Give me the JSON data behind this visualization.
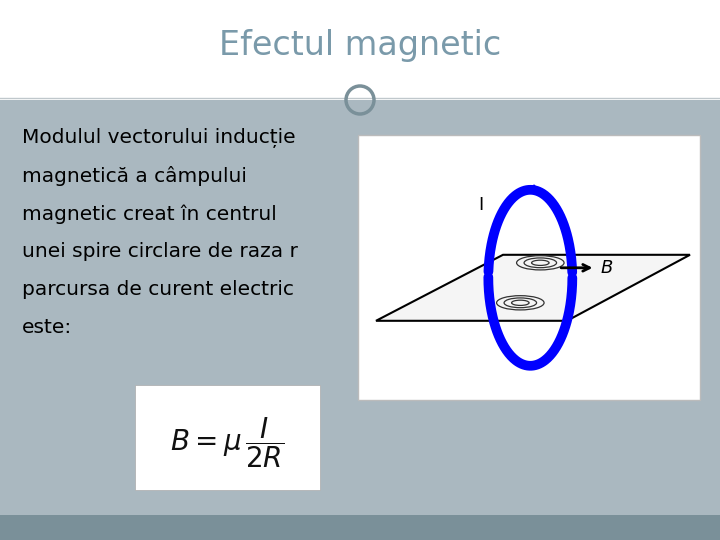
{
  "title": "Efectul magnetic",
  "title_color": "#7a9aaa",
  "title_bg": "#ffffff",
  "content_bg": "#aab8c0",
  "body_text_color": "#000000",
  "formula_bg": "#ffffff",
  "image_box_bg": "#ffffff",
  "image_box_border": "#bbbbbb",
  "footer_color": "#7a9099",
  "circle_deco_color": "#7a9099",
  "body_lines": [
    "Modulul vectorului inducție",
    "magnetică a câmpului",
    "magnetic creat în centrul",
    "unei spire circlare de raza r",
    "parcursa de curent electric",
    "este:"
  ]
}
